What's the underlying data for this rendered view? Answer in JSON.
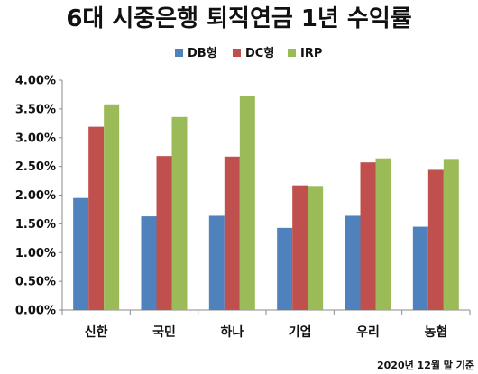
{
  "chart_data": {
    "type": "bar",
    "title": "6대 시중은행 퇴직연금 1년 수익률",
    "categories": [
      "신한",
      "국민",
      "하나",
      "기업",
      "우리",
      "농협"
    ],
    "series": [
      {
        "name": "DB형",
        "values": [
          1.95,
          1.63,
          1.64,
          1.43,
          1.64,
          1.45
        ]
      },
      {
        "name": "DC형",
        "values": [
          3.19,
          2.68,
          2.67,
          2.17,
          2.57,
          2.44
        ]
      },
      {
        "name": "IRP",
        "values": [
          3.58,
          3.36,
          3.73,
          2.16,
          2.64,
          2.63
        ]
      }
    ],
    "ylim": [
      0,
      4
    ],
    "yticks": [
      "0.00%",
      "0.50%",
      "1.00%",
      "1.50%",
      "2.00%",
      "2.50%",
      "3.00%",
      "3.50%",
      "4.00%"
    ],
    "legend_position": "top-center",
    "grid": false,
    "note": "2020년 12월 말 기준",
    "colors": [
      "#4F81BD",
      "#C0504D",
      "#9BBB59"
    ]
  }
}
